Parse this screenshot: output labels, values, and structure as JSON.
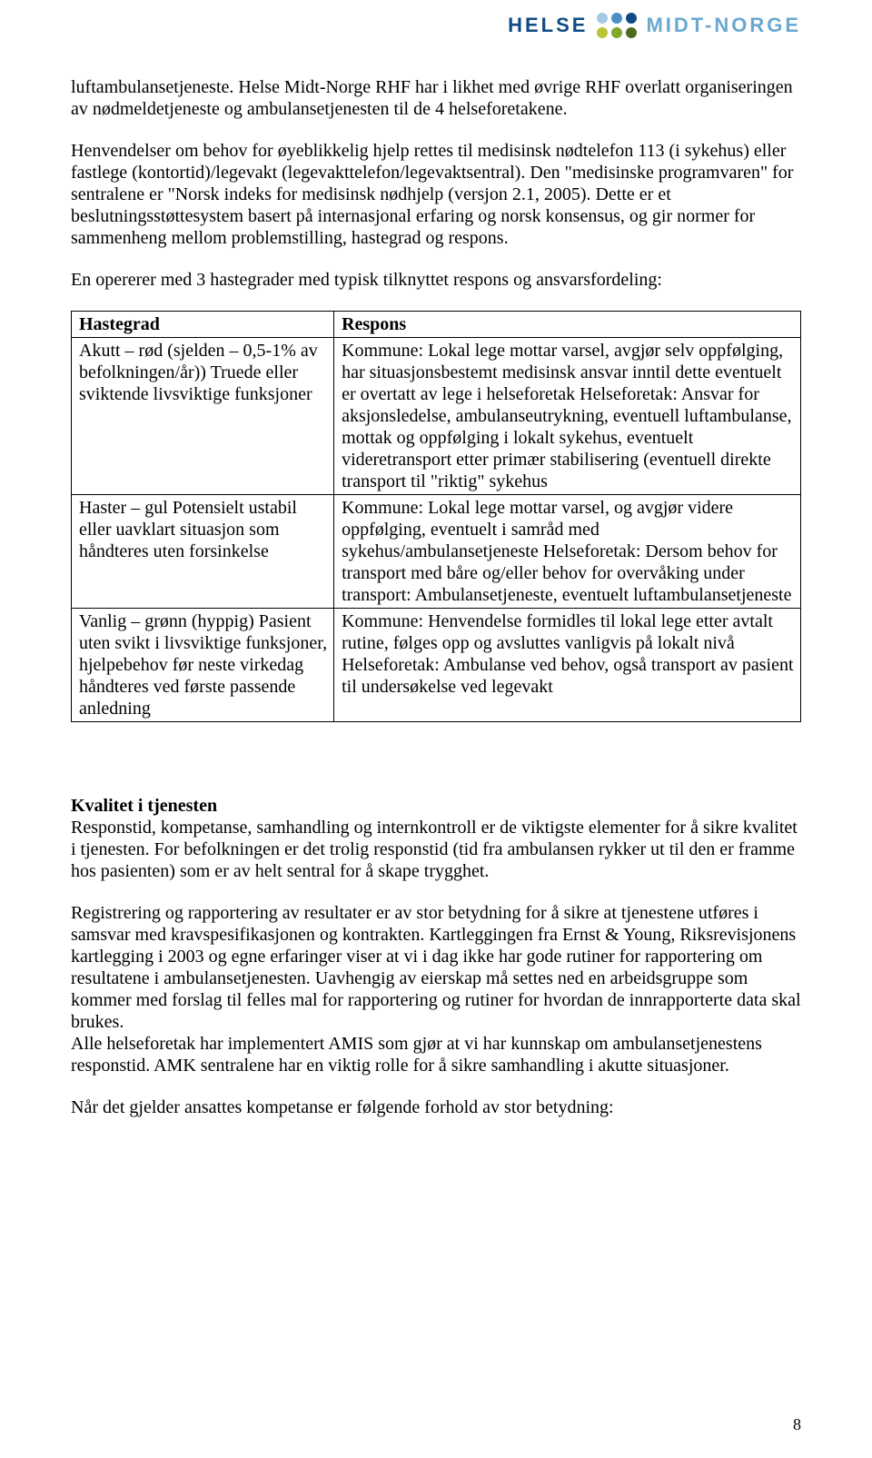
{
  "logo": {
    "left": "HELSE",
    "right": "MIDT-NORGE",
    "dot_colors": [
      "#a4c9e3",
      "#4a8fc5",
      "#0f4b82",
      "#b9c435",
      "#7fa82d",
      "#4d6b1f"
    ]
  },
  "para1": "luftambulansetjeneste. Helse Midt-Norge RHF har i likhet med øvrige RHF overlatt organiseringen av nødmeldetjeneste og ambulansetjenesten til de 4 helseforetakene.",
  "para2": "Henvendelser om behov for øyeblikkelig hjelp rettes til medisinsk nødtelefon 113 (i sykehus) eller fastlege (kontortid)/legevakt (legevakttelefon/legevaktsentral). Den \"medisinske programvaren\" for sentralene er \"Norsk indeks for medisinsk nødhjelp (versjon 2.1, 2005). Dette er et beslutningsstøttesystem basert på internasjonal erfaring og norsk konsensus, og gir normer for sammenheng mellom problemstilling, hastegrad og respons.",
  "para3": "En opererer med 3 hastegrader med typisk tilknyttet respons og ansvarsfordeling:",
  "table": {
    "head_left": "Hastegrad",
    "head_right": "Respons",
    "rows": [
      {
        "left": "Akutt – rød (sjelden – 0,5-1% av befolkningen/år)) Truede eller sviktende livsviktige funksjoner",
        "right": "Kommune: Lokal lege mottar varsel, avgjør selv oppfølging, har situasjonsbestemt medisinsk ansvar inntil dette eventuelt er overtatt av lege i helseforetak Helseforetak: Ansvar for aksjonsledelse, ambulanseutrykning, eventuell luftambulanse, mottak og oppfølging i lokalt sykehus, eventuelt videretransport etter primær stabilisering (eventuell direkte transport til \"riktig\" sykehus"
      },
      {
        "left": "Haster – gul Potensielt ustabil eller uavklart situasjon som håndteres uten forsinkelse",
        "right": "Kommune: Lokal lege mottar varsel, og avgjør videre oppfølging, eventuelt i samråd med sykehus/ambulansetjeneste Helseforetak: Dersom behov for transport med båre og/eller behov for overvåking under transport: Ambulansetjeneste, eventuelt luftambulansetjeneste"
      },
      {
        "left": "Vanlig – grønn (hyppig) Pasient uten svikt i livsviktige funksjoner, hjelpebehov før neste virkedag håndteres ved første passende anledning",
        "right": "Kommune: Henvendelse formidles til lokal lege etter avtalt rutine, følges opp og avsluttes vanligvis på lokalt nivå Helseforetak: Ambulanse ved behov, også transport av pasient til undersøkelse ved legevakt"
      }
    ]
  },
  "section": {
    "heading": "Kvalitet i tjenesten",
    "p1": "Responstid, kompetanse, samhandling og internkontroll er de viktigste elementer for å sikre kvalitet i tjenesten. For befolkningen er det trolig responstid (tid fra ambulansen rykker ut til den er framme hos pasienten) som er av helt sentral for å skape trygghet.",
    "p2": "Registrering og rapportering av resultater er av stor betydning for å sikre at tjenestene utføres i samsvar med kravspesifikasjonen og kontrakten. Kartleggingen fra Ernst & Young, Riksrevisjonens kartlegging i 2003 og egne erfaringer viser at vi i dag ikke har gode rutiner for rapportering om resultatene i ambulansetjenesten. Uavhengig av eierskap må settes ned en arbeidsgruppe som kommer med forslag til felles mal for rapportering og rutiner for hvordan de innrapporterte data skal brukes.",
    "p3": "Alle helseforetak har implementert AMIS som gjør at vi har kunnskap om ambulansetjenestens responstid. AMK sentralene har en viktig rolle for å sikre samhandling i akutte situasjoner.",
    "p4": "Når det gjelder ansattes kompetanse er følgende forhold av stor betydning:"
  },
  "page_number": "8"
}
